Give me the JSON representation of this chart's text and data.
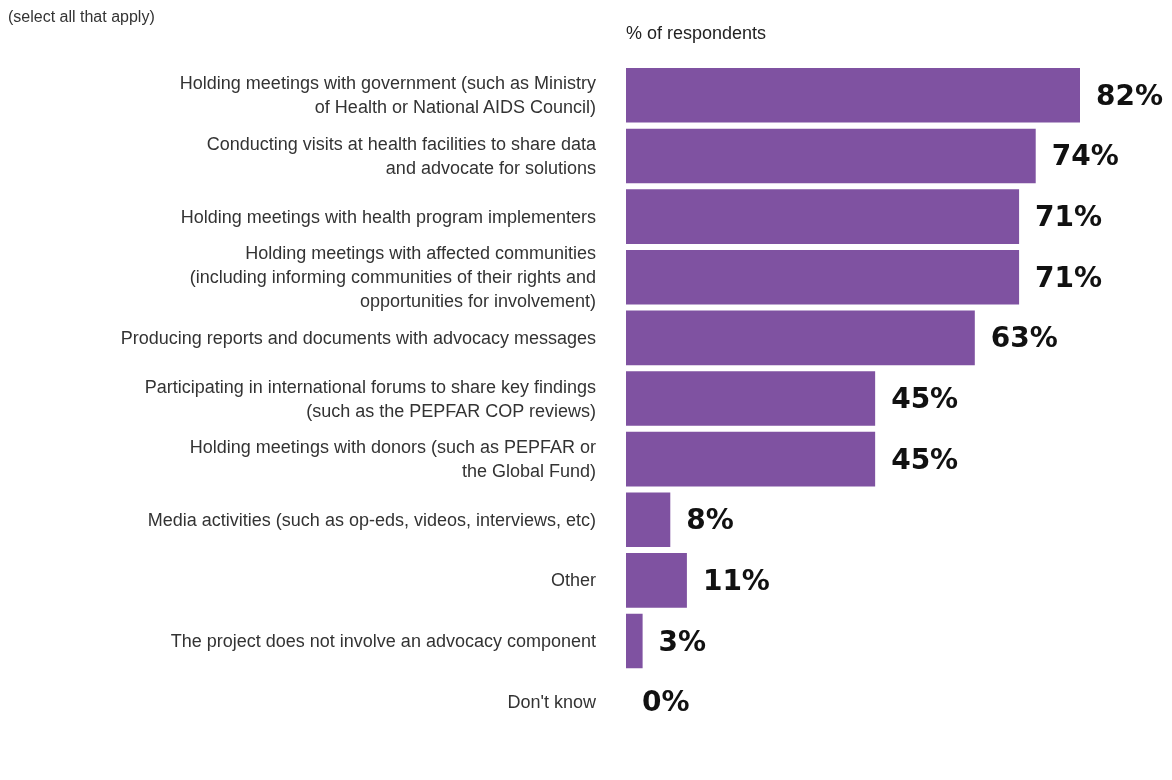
{
  "chart_data": {
    "type": "bar",
    "orientation": "horizontal",
    "subtitle": "(select all that apply)",
    "xlabel": "% of respondents",
    "categories": [
      "Holding meetings with government (such as Ministry\nof Health or National AIDS Council)",
      "Conducting visits at health facilities to share data\nand advocate for solutions",
      "Holding meetings with health program implementers",
      "Holding meetings with affected communities\n(including informing communities of their rights and\nopportunities for involvement)",
      "Producing reports and documents with advocacy messages",
      "Participating in international forums to share key findings\n(such as the PEPFAR COP reviews)",
      "Holding meetings with donors (such as PEPFAR or\nthe Global Fund)",
      "Media activities (such as op-eds, videos, interviews, etc)",
      "Other",
      "The project does not involve an advocacy component",
      "Don't know"
    ],
    "values": [
      82,
      74,
      71,
      71,
      63,
      45,
      45,
      8,
      11,
      3,
      0
    ],
    "value_labels": [
      "82%",
      "74%",
      "71%",
      "71%",
      "63%",
      "45%",
      "45%",
      "8%",
      "11%",
      "3%",
      "0%"
    ],
    "color": "#7f52a1"
  }
}
